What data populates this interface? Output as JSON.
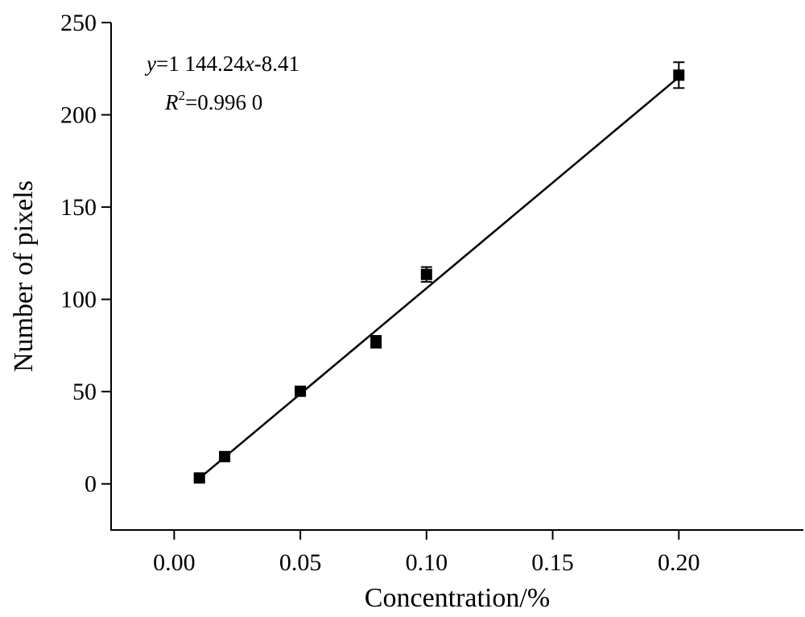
{
  "chart_data": {
    "type": "scatter",
    "xlabel": "Concentration/%",
    "ylabel": "Number of pixels",
    "xlim": [
      -0.025,
      0.25
    ],
    "ylim": [
      -25,
      250
    ],
    "grid": false,
    "x_ticks": [
      {
        "value": 0.0,
        "label": "0.00"
      },
      {
        "value": 0.05,
        "label": "0.05"
      },
      {
        "value": 0.1,
        "label": "0.10"
      },
      {
        "value": 0.15,
        "label": "0.15"
      },
      {
        "value": 0.2,
        "label": "0.20"
      }
    ],
    "y_ticks": [
      {
        "value": 0,
        "label": "0"
      },
      {
        "value": 50,
        "label": "50"
      },
      {
        "value": 100,
        "label": "100"
      },
      {
        "value": 150,
        "label": "150"
      },
      {
        "value": 200,
        "label": "200"
      },
      {
        "value": 250,
        "label": "250"
      }
    ],
    "points": [
      {
        "x": 0.01,
        "y": 3.2,
        "err": 1.5
      },
      {
        "x": 0.02,
        "y": 14.8,
        "err": 1.8
      },
      {
        "x": 0.05,
        "y": 50.2,
        "err": 1.8
      },
      {
        "x": 0.08,
        "y": 77.0,
        "err": 3.2
      },
      {
        "x": 0.1,
        "y": 113.5,
        "err": 4.0
      },
      {
        "x": 0.2,
        "y": 221.5,
        "err": 7.0
      }
    ],
    "fit": {
      "slope": 1144.24,
      "intercept": -8.41,
      "x_range": [
        0.01,
        0.2
      ]
    },
    "annotations": {
      "equation": {
        "y_var": "y",
        "rhs_a": "=1 144.24",
        "x_var": "x",
        "rhs_b": "-8.41"
      },
      "r2": {
        "r": "R",
        "sup": "2",
        "rest": "=0.996 0"
      }
    }
  }
}
